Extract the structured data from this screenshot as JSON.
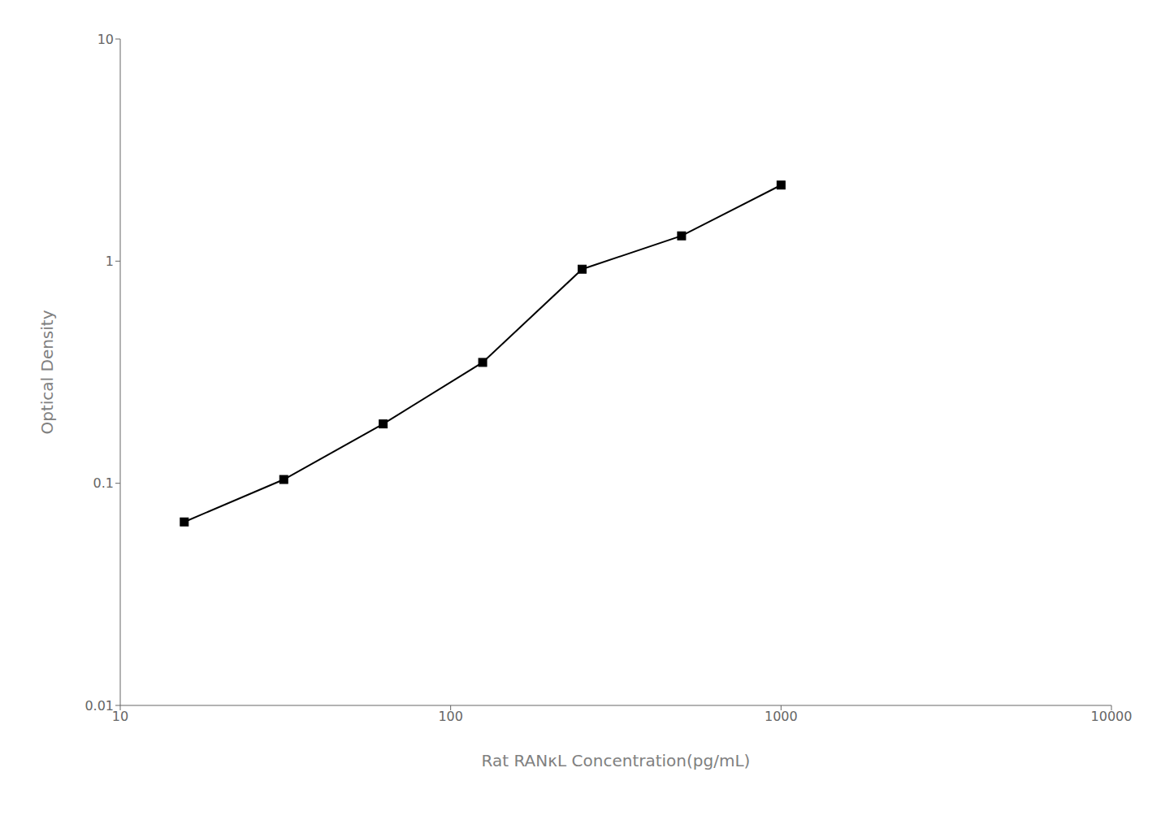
{
  "chart_data": {
    "type": "line",
    "x": [
      15.625,
      31.25,
      62.5,
      125,
      250,
      500,
      1000
    ],
    "values": [
      0.067,
      0.104,
      0.185,
      0.35,
      0.92,
      1.3,
      2.2
    ],
    "xlabel": "Rat RANκL Concentration(pg/mL)",
    "ylabel": "Optical Density",
    "xlim": [
      10,
      10000
    ],
    "ylim": [
      0.01,
      10
    ],
    "xticks": [
      10,
      100,
      1000,
      10000
    ],
    "yticks": [
      0.01,
      0.1,
      1,
      10
    ],
    "log": true,
    "grid": false,
    "color": "#000000",
    "marker": "square"
  }
}
